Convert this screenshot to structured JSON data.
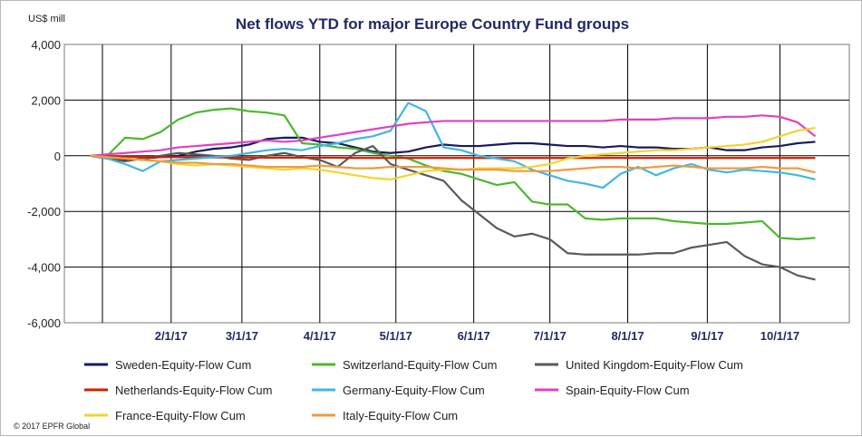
{
  "chart_data": {
    "type": "line",
    "title": "Net flows YTD for major Europe Country Fund groups",
    "ylabel": "US$ mill",
    "xlabel": "",
    "ylim": [
      -6000,
      4000
    ],
    "yticks": [
      4000,
      2000,
      0,
      -2000,
      -4000,
      -6000
    ],
    "ytick_labels": [
      "4,000",
      "2,000",
      "0",
      "-2,000",
      "-4,000",
      "-6,000"
    ],
    "x_range_weeks": [
      0,
      42
    ],
    "xticks": [
      {
        "label": "2/1/17",
        "week": 4.6
      },
      {
        "label": "3/1/17",
        "week": 8.6
      },
      {
        "label": "4/1/17",
        "week": 13.0
      },
      {
        "label": "5/1/17",
        "week": 17.3
      },
      {
        "label": "6/1/17",
        "week": 21.7
      },
      {
        "label": "7/1/17",
        "week": 26.0
      },
      {
        "label": "8/1/17",
        "week": 30.4
      },
      {
        "label": "9/1/17",
        "week": 34.9
      },
      {
        "label": "10/1/17",
        "week": 39.0
      }
    ],
    "grid": true,
    "legend_position": "bottom",
    "copyright": "© 2017 EPFR Global",
    "series": [
      {
        "name": "Sweden-Equity-Flow Cum",
        "color": "#1a1a5e",
        "values": [
          0,
          -100,
          -150,
          -100,
          -50,
          0,
          150,
          250,
          300,
          400,
          600,
          650,
          650,
          500,
          450,
          300,
          150,
          100,
          150,
          300,
          400,
          350,
          350,
          400,
          450,
          450,
          400,
          350,
          350,
          300,
          350,
          300,
          300,
          250,
          250,
          300,
          200,
          200,
          300,
          350,
          450,
          500
        ]
      },
      {
        "name": "Switzerland-Equity-Flow Cum",
        "color": "#4cb82e",
        "values": [
          0,
          0,
          650,
          600,
          850,
          1300,
          1550,
          1650,
          1700,
          1600,
          1550,
          1450,
          450,
          400,
          300,
          250,
          100,
          0,
          -100,
          -350,
          -550,
          -650,
          -850,
          -1050,
          -950,
          -1650,
          -1750,
          -1750,
          -2250,
          -2300,
          -2250,
          -2250,
          -2250,
          -2350,
          -2400,
          -2450,
          -2450,
          -2400,
          -2350,
          -2950,
          -3000,
          -2950
        ]
      },
      {
        "name": "United Kingdom-Equity-Flow Cum",
        "color": "#5a5a5a",
        "values": [
          0,
          -100,
          -200,
          -100,
          0,
          100,
          50,
          0,
          -100,
          -150,
          0,
          100,
          -50,
          -150,
          -400,
          100,
          350,
          -300,
          -500,
          -700,
          -900,
          -1600,
          -2100,
          -2600,
          -2900,
          -2800,
          -3000,
          -3500,
          -3550,
          -3550,
          -3550,
          -3550,
          -3500,
          -3500,
          -3300,
          -3200,
          -3100,
          -3600,
          -3900,
          -4000,
          -4300,
          -4450
        ]
      },
      {
        "name": "Netherlands-Equity-Flow Cum",
        "color": "#cc2200",
        "values": [
          0,
          -20,
          -30,
          -40,
          -50,
          -50,
          -60,
          -60,
          -60,
          -60,
          -70,
          -70,
          -70,
          -70,
          -70,
          -80,
          -80,
          -80,
          -80,
          -80,
          -80,
          -80,
          -80,
          -80,
          -80,
          -80,
          -80,
          -80,
          -80,
          -80,
          -80,
          -80,
          -80,
          -80,
          -80,
          -80,
          -80,
          -80,
          -80,
          -80,
          -80,
          -80
        ]
      },
      {
        "name": "Germany-Equity-Flow Cum",
        "color": "#41b6e6",
        "values": [
          0,
          -100,
          -300,
          -550,
          -200,
          -150,
          -100,
          -50,
          0,
          100,
          200,
          250,
          200,
          350,
          450,
          600,
          700,
          900,
          1900,
          1600,
          300,
          200,
          0,
          -100,
          -200,
          -500,
          -700,
          -900,
          -1000,
          -1150,
          -650,
          -400,
          -700,
          -450,
          -300,
          -500,
          -600,
          -500,
          -550,
          -600,
          -700,
          -850
        ]
      },
      {
        "name": "Spain-Equity-Flow Cum",
        "color": "#e040c0",
        "values": [
          0,
          50,
          100,
          150,
          200,
          300,
          350,
          400,
          450,
          500,
          550,
          500,
          550,
          650,
          750,
          850,
          950,
          1050,
          1150,
          1200,
          1250,
          1250,
          1250,
          1250,
          1250,
          1250,
          1250,
          1250,
          1250,
          1250,
          1300,
          1300,
          1300,
          1350,
          1350,
          1350,
          1400,
          1400,
          1450,
          1400,
          1200,
          700
        ]
      },
      {
        "name": "France-Equity-Flow Cum",
        "color": "#f5d32b",
        "values": [
          0,
          -50,
          -100,
          -150,
          -200,
          -300,
          -350,
          -300,
          -350,
          -400,
          -450,
          -500,
          -450,
          -500,
          -600,
          -700,
          -800,
          -850,
          -700,
          -550,
          -500,
          -500,
          -450,
          -450,
          -450,
          -400,
          -300,
          -100,
          0,
          50,
          100,
          150,
          200,
          200,
          250,
          300,
          350,
          400,
          500,
          700,
          900,
          1000
        ]
      },
      {
        "name": "Italy-Equity-Flow Cum",
        "color": "#f09a3c",
        "values": [
          0,
          -50,
          -100,
          -150,
          -200,
          -250,
          -250,
          -300,
          -300,
          -350,
          -400,
          -400,
          -400,
          -350,
          -400,
          -450,
          -450,
          -400,
          -400,
          -400,
          -450,
          -500,
          -500,
          -500,
          -550,
          -550,
          -550,
          -500,
          -450,
          -400,
          -400,
          -450,
          -400,
          -350,
          -400,
          -450,
          -450,
          -450,
          -400,
          -450,
          -450,
          -600
        ]
      }
    ]
  }
}
